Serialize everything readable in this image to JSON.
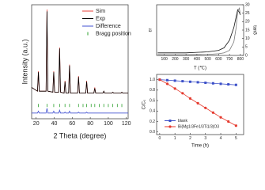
{
  "chart_data": [
    {
      "type": "line",
      "xlabel": "2 Theta (degree)",
      "ylabel": "Intensity (a.u.)",
      "x": [
        15,
        21.5,
        22.5,
        23.5,
        31,
        32,
        33,
        38.5,
        39.5,
        40.5,
        45,
        46,
        47,
        51,
        52,
        53,
        56,
        57,
        58,
        66,
        67,
        68,
        75,
        76,
        77,
        84,
        85,
        86,
        94,
        95,
        96,
        104,
        105,
        106,
        114,
        115,
        116,
        122
      ],
      "series": [
        {
          "name": "Sim",
          "color": "#e8423a",
          "values": [
            18,
            14,
            35,
            14,
            14,
            100,
            14,
            13,
            35,
            13,
            13,
            60,
            13,
            12,
            25,
            12,
            12,
            42,
            12,
            12,
            30,
            12,
            12,
            25,
            12,
            12,
            18,
            12,
            12,
            14,
            12,
            12,
            13,
            12,
            12,
            13,
            12,
            12
          ]
        },
        {
          "name": "Exp",
          "color": "#000000",
          "values": [
            18,
            14,
            34,
            14,
            14,
            98,
            14,
            13,
            34,
            13,
            13,
            59,
            13,
            12,
            24,
            12,
            12,
            41,
            12,
            12,
            29,
            12,
            12,
            24,
            12,
            12,
            17,
            12,
            12,
            14,
            12,
            12,
            13,
            12,
            12,
            13,
            12,
            12
          ]
        },
        {
          "name": "Difference",
          "color": "#3f4fd0",
          "values": [
            -9,
            -9,
            -7,
            -9,
            -9,
            -4,
            -9,
            -9,
            -7,
            -9,
            -9,
            -6,
            -9,
            -9,
            -8,
            -9,
            -9,
            -7,
            -9,
            -9,
            -8,
            -9,
            -9,
            -8,
            -9,
            -9,
            -9,
            -9,
            -9,
            -9,
            -9,
            -9,
            -9,
            -9,
            -9,
            -9,
            -9,
            -9
          ]
        }
      ],
      "bragg": {
        "name": "Bragg position",
        "color": "#2ca02c",
        "x": [
          22.5,
          32,
          39.5,
          46,
          52,
          57,
          67,
          72,
          76,
          81,
          85,
          90,
          95,
          100,
          105,
          110,
          115
        ]
      },
      "xlim": [
        15,
        122
      ],
      "xticks": [
        20,
        40,
        60,
        80,
        100,
        120
      ],
      "ylim": [
        -15,
        105
      ],
      "legend": "upper right"
    },
    {
      "type": "line",
      "xlabel": "T (℃)",
      "ylabel": "εr",
      "y2label": "tanδ",
      "x": [
        40,
        100,
        200,
        300,
        400,
        500,
        600,
        650,
        700,
        740,
        760,
        775,
        790,
        800
      ],
      "series": [
        {
          "color": "#111111",
          "values": [
            0.05,
            0.05,
            0.05,
            0.05,
            0.06,
            0.07,
            0.1,
            0.15,
            0.3,
            0.55,
            0.75,
            0.9,
            0.85,
            0.8
          ]
        },
        {
          "color": "#777777",
          "axis": "y2",
          "values": [
            0.5,
            0.4,
            0.4,
            0.4,
            0.5,
            0.6,
            1,
            1.5,
            3,
            8,
            16,
            26,
            28,
            24
          ]
        }
      ],
      "xlim": [
        30,
        830
      ],
      "xticks": [
        100,
        200,
        300,
        400,
        500,
        600,
        700,
        800
      ],
      "ylim": [
        0,
        1
      ],
      "y2lim": [
        0,
        30
      ],
      "y2ticks": [
        0,
        5,
        10,
        15,
        20,
        25,
        30
      ]
    },
    {
      "type": "line",
      "xlabel": "Time (h)",
      "ylabel": "C/C₀",
      "x": [
        0,
        0.5,
        1,
        1.5,
        2,
        2.5,
        3,
        3.5,
        4,
        4.5,
        5
      ],
      "series": [
        {
          "name": "blank",
          "color": "#3b4fc8",
          "marker": "square",
          "values": [
            1.0,
            0.99,
            0.98,
            0.97,
            0.96,
            0.95,
            0.94,
            0.93,
            0.92,
            0.91,
            0.9
          ]
        },
        {
          "name": "Bi(Mg1/3Fe1/3Ti1/3)O3",
          "color": "#e53a2e",
          "marker": "circle",
          "values": [
            1.0,
            0.92,
            0.83,
            0.74,
            0.64,
            0.55,
            0.46,
            0.37,
            0.28,
            0.2,
            0.12
          ]
        }
      ],
      "xlim": [
        -0.2,
        5.5
      ],
      "xticks": [
        0,
        1,
        2,
        3,
        4,
        5
      ],
      "ylim": [
        -0.05,
        1.1
      ],
      "yticks": [
        {
          "value": 0,
          "label": "0.0"
        },
        0.2,
        0.4,
        0.6,
        0.8,
        {
          "value": 1,
          "label": "1.0"
        }
      ],
      "legend": "lower left"
    }
  ]
}
